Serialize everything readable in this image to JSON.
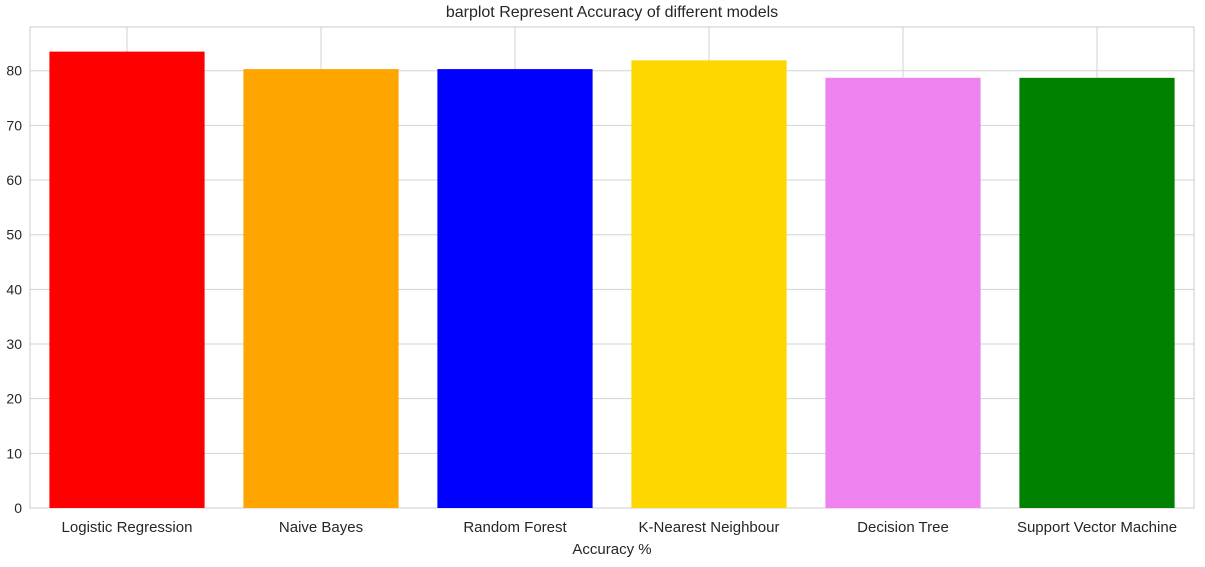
{
  "chart_data": {
    "type": "bar",
    "title": "barplot Represent Accuracy of different models",
    "xlabel": "Accuracy %",
    "ylabel": "",
    "categories": [
      "Logistic Regression",
      "Naive Bayes",
      "Random Forest",
      "K-Nearest Neighbour",
      "Decision Tree",
      "Support Vector Machine"
    ],
    "values": [
      83.5,
      80.3,
      80.3,
      81.9,
      78.7,
      78.7
    ],
    "colors": [
      "#ff0000",
      "#ffa500",
      "#0000ff",
      "#ffd700",
      "#ee82ee",
      "#008000"
    ],
    "ylim": [
      0,
      88
    ],
    "yticks": [
      0,
      10,
      20,
      30,
      40,
      50,
      60,
      70,
      80
    ],
    "grid": true
  }
}
